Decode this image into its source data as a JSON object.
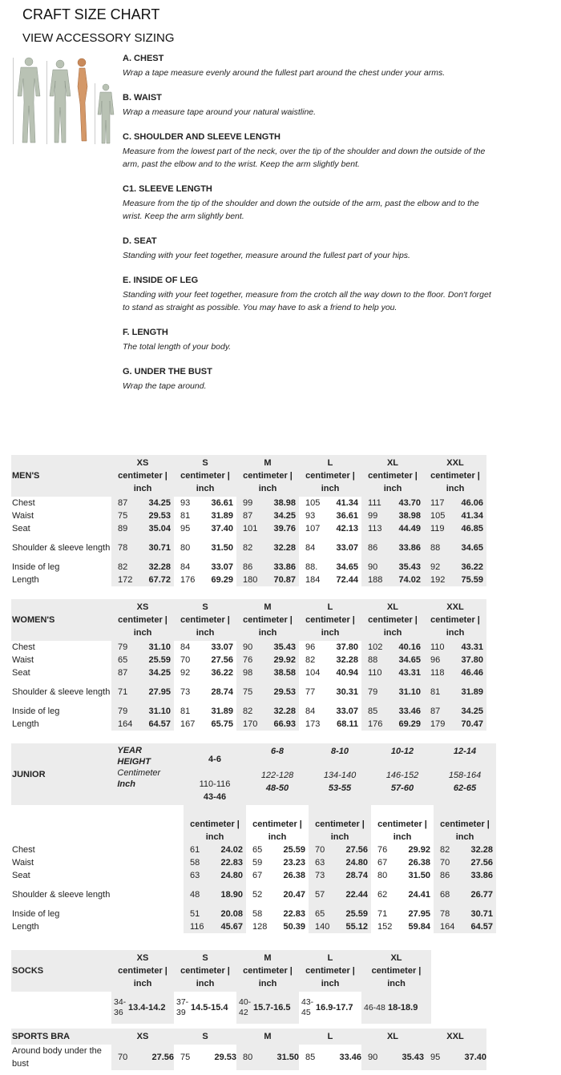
{
  "title": "CRAFT SIZE CHART",
  "subtitle": "VIEW ACCESSORY SIZING",
  "guide": [
    {
      "heading": "A. CHEST",
      "text": "Wrap a tape measure evenly around the fullest part around the chest under your arms."
    },
    {
      "heading": "B. WAIST",
      "text": "Wrap a measure tape around your natural waistline."
    },
    {
      "heading": "C. SHOULDER AND SLEEVE LENGTH",
      "text": "Measure from the lowest part of the neck, over the tip of the shoulder and down the outside of the arm, past the elbow and to the wrist. Keep the arm slightly bent."
    },
    {
      "heading": "C1. SLEEVE LENGTH",
      "text": "Measure from the tip of the shoulder and down the outside of the arm, past the elbow and to the wrist. Keep the arm slightly bent."
    },
    {
      "heading": "D. SEAT",
      "text": "Standing with your feet together, measure around the fullest part of your hips."
    },
    {
      "heading": "E. INSIDE OF LEG",
      "text": "Standing with your feet together, measure from the crotch all the way down to the floor. Don't forget to stand as straight as possible. You may have to ask a friend to help you."
    },
    {
      "heading": "F. LENGTH",
      "text": "The total length of your body."
    },
    {
      "heading": "G. UNDER THE BUST",
      "text": "Wrap the tape around."
    }
  ],
  "unit_label": "centimeter |",
  "unit_label2": "inch",
  "mens": {
    "label": "MEN'S",
    "sizes": [
      "XS",
      "S",
      "M",
      "L",
      "XL",
      "XXL"
    ],
    "rows": [
      {
        "name": "Chest",
        "values": [
          [
            "87",
            "34.25"
          ],
          [
            "93",
            "36.61"
          ],
          [
            "99",
            "38.98"
          ],
          [
            "105",
            "41.34"
          ],
          [
            "111",
            "43.70"
          ],
          [
            "117",
            "46.06"
          ]
        ]
      },
      {
        "name": "Waist",
        "values": [
          [
            "75",
            "29.53"
          ],
          [
            "81",
            "31.89"
          ],
          [
            "87",
            "34.25"
          ],
          [
            "93",
            "36.61"
          ],
          [
            "99",
            "38.98"
          ],
          [
            "105",
            "41.34"
          ]
        ]
      },
      {
        "name": "Seat",
        "values": [
          [
            "89",
            "35.04"
          ],
          [
            "95",
            "37.40"
          ],
          [
            "101",
            "39.76"
          ],
          [
            "107",
            "42.13"
          ],
          [
            "113",
            "44.49"
          ],
          [
            "119",
            "46.85"
          ]
        ]
      },
      {
        "name": "Shoulder & sleeve length",
        "values": [
          [
            "78",
            "30.71"
          ],
          [
            "80",
            "31.50"
          ],
          [
            "82",
            "32.28"
          ],
          [
            "84",
            "33.07"
          ],
          [
            "86",
            "33.86"
          ],
          [
            "88",
            "34.65"
          ]
        ]
      },
      {
        "name": "Inside of leg",
        "values": [
          [
            "82",
            "32.28"
          ],
          [
            "84",
            "33.07"
          ],
          [
            "86",
            "33.86"
          ],
          [
            "88.",
            "34.65"
          ],
          [
            "90",
            "35.43"
          ],
          [
            "92",
            "36.22"
          ]
        ]
      },
      {
        "name": "Length",
        "values": [
          [
            "172",
            "67.72"
          ],
          [
            "176",
            "69.29"
          ],
          [
            "180",
            "70.87"
          ],
          [
            "184",
            "72.44"
          ],
          [
            "188",
            "74.02"
          ],
          [
            "192",
            "75.59"
          ]
        ]
      }
    ]
  },
  "womens": {
    "label": "WOMEN'S",
    "sizes": [
      "XS",
      "S",
      "M",
      "L",
      "XL",
      "XXL"
    ],
    "rows": [
      {
        "name": "Chest",
        "values": [
          [
            "79",
            "31.10"
          ],
          [
            "84",
            "33.07"
          ],
          [
            "90",
            "35.43"
          ],
          [
            "96",
            "37.80"
          ],
          [
            "102",
            "40.16"
          ],
          [
            "110",
            "43.31"
          ]
        ]
      },
      {
        "name": "Waist",
        "values": [
          [
            "65",
            "25.59"
          ],
          [
            "70",
            "27.56"
          ],
          [
            "76",
            "29.92"
          ],
          [
            "82",
            "32.28"
          ],
          [
            "88",
            "34.65"
          ],
          [
            "96",
            "37.80"
          ]
        ]
      },
      {
        "name": "Seat",
        "values": [
          [
            "87",
            "34.25"
          ],
          [
            "92",
            "36.22"
          ],
          [
            "98",
            "38.58"
          ],
          [
            "104",
            "40.94"
          ],
          [
            "110",
            "43.31"
          ],
          [
            "118",
            "46.46"
          ]
        ]
      },
      {
        "name": "Shoulder & sleeve length",
        "values": [
          [
            "71",
            "27.95"
          ],
          [
            "73",
            "28.74"
          ],
          [
            "75",
            "29.53"
          ],
          [
            "77",
            "30.31"
          ],
          [
            "79",
            "31.10"
          ],
          [
            "81",
            "31.89"
          ]
        ]
      },
      {
        "name": "Inside of leg",
        "values": [
          [
            "79",
            "31.10"
          ],
          [
            "81",
            "31.89"
          ],
          [
            "82",
            "32.28"
          ],
          [
            "84",
            "33.07"
          ],
          [
            "85",
            "33.46"
          ],
          [
            "87",
            "34.25"
          ]
        ]
      },
      {
        "name": "Length",
        "values": [
          [
            "164",
            "64.57"
          ],
          [
            "167",
            "65.75"
          ],
          [
            "170",
            "66.93"
          ],
          [
            "173",
            "68.11"
          ],
          [
            "176",
            "69.29"
          ],
          [
            "179",
            "70.47"
          ]
        ]
      }
    ]
  },
  "junior": {
    "label": "JUNIOR",
    "key": {
      "year": "YEAR",
      "height": "HEIGHT",
      "cm": "Centimeter",
      "inch": "Inch"
    },
    "ages": [
      {
        "year": "4-6",
        "cm": "110-116",
        "inch": "43-46"
      },
      {
        "year": "6-8",
        "cm": "122-128",
        "inch": "48-50"
      },
      {
        "year": "8-10",
        "cm": "134-140",
        "inch": "53-55"
      },
      {
        "year": "10-12",
        "cm": "146-152",
        "inch": "57-60"
      },
      {
        "year": "12-14",
        "cm": "158-164",
        "inch": "62-65"
      }
    ],
    "rows": [
      {
        "name": "Chest",
        "values": [
          [
            "61",
            "24.02"
          ],
          [
            "65",
            "25.59"
          ],
          [
            "70",
            "27.56"
          ],
          [
            "76",
            "29.92"
          ],
          [
            "82",
            "32.28"
          ]
        ]
      },
      {
        "name": "Waist",
        "values": [
          [
            "58",
            "22.83"
          ],
          [
            "59",
            "23.23"
          ],
          [
            "63",
            "24.80"
          ],
          [
            "67",
            "26.38"
          ],
          [
            "70",
            "27.56"
          ]
        ]
      },
      {
        "name": "Seat",
        "values": [
          [
            "63",
            "24.80"
          ],
          [
            "67",
            "26.38"
          ],
          [
            "73",
            "28.74"
          ],
          [
            "80",
            "31.50"
          ],
          [
            "86",
            "33.86"
          ]
        ]
      },
      {
        "name": "Shoulder & sleeve length",
        "values": [
          [
            "48",
            "18.90"
          ],
          [
            "52",
            "20.47"
          ],
          [
            "57",
            "22.44"
          ],
          [
            "62",
            "24.41"
          ],
          [
            "68",
            "26.77"
          ]
        ]
      },
      {
        "name": "Inside of leg",
        "values": [
          [
            "51",
            "20.08"
          ],
          [
            "58",
            "22.83"
          ],
          [
            "65",
            "25.59"
          ],
          [
            "71",
            "27.95"
          ],
          [
            "78",
            "30.71"
          ]
        ]
      },
      {
        "name": "Length",
        "values": [
          [
            "116",
            "45.67"
          ],
          [
            "128",
            "50.39"
          ],
          [
            "140",
            "55.12"
          ],
          [
            "152",
            "59.84"
          ],
          [
            "164",
            "64.57"
          ]
        ]
      }
    ]
  },
  "socks": {
    "label": "SOCKS",
    "sizes": [
      "XS",
      "S",
      "M",
      "L",
      "XL"
    ],
    "rows": [
      {
        "name": "",
        "values": [
          [
            "34-36",
            "13.4-14.2"
          ],
          [
            "37-39",
            "14.5-15.4"
          ],
          [
            "40-42",
            "15.7-16.5"
          ],
          [
            "43-45",
            "16.9-17.7"
          ],
          [
            "46-48",
            "18-18.9"
          ]
        ]
      }
    ]
  },
  "bra": {
    "label": "SPORTS BRA",
    "sizes": [
      "XS",
      "S",
      "M",
      "L",
      "XL",
      "XXL"
    ],
    "rows": [
      {
        "name": "Around body under the bust",
        "values": [
          [
            "70",
            "27.56"
          ],
          [
            "75",
            "29.53"
          ],
          [
            "80",
            "31.50"
          ],
          [
            "85",
            "33.46"
          ],
          [
            "90",
            "35.43"
          ],
          [
            "95",
            "37.40"
          ]
        ]
      }
    ]
  }
}
